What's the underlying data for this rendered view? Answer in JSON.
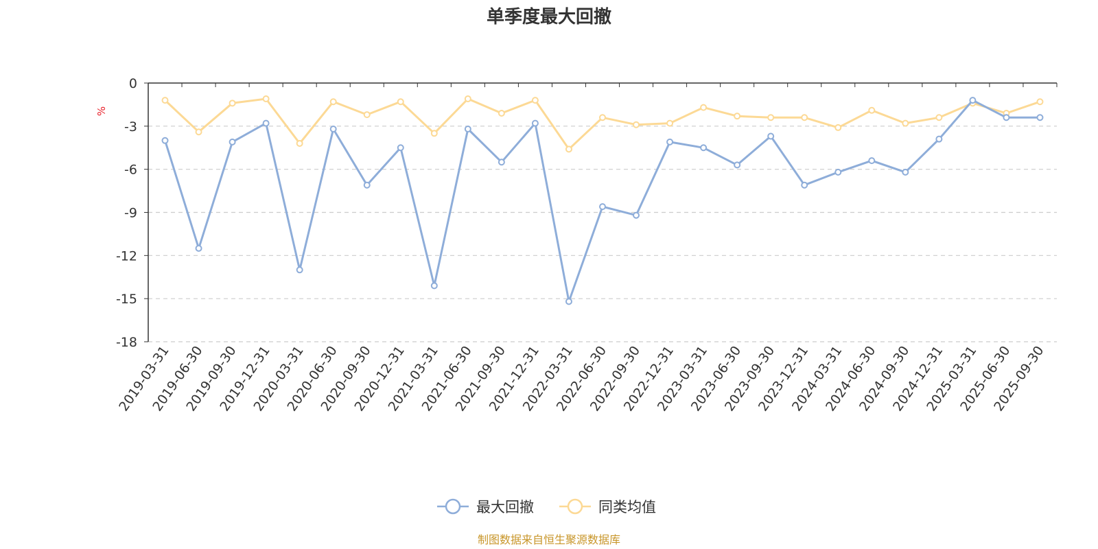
{
  "chart_data": {
    "type": "line",
    "title": "单季度最大回撤",
    "ylabel": "%",
    "xlabel": "",
    "ylim": [
      -18,
      0
    ],
    "yticks": [
      0,
      -3,
      -6,
      -9,
      -12,
      -15,
      -18
    ],
    "grid": true,
    "legend_position": "bottom-center",
    "categories": [
      "2019-03-31",
      "2019-06-30",
      "2019-09-30",
      "2019-12-31",
      "2020-03-31",
      "2020-06-30",
      "2020-09-30",
      "2020-12-31",
      "2021-03-31",
      "2021-06-30",
      "2021-09-30",
      "2021-12-31",
      "2022-03-31",
      "2022-06-30",
      "2022-09-30",
      "2022-12-31",
      "2023-03-31",
      "2023-06-30",
      "2023-09-30",
      "2023-12-31",
      "2024-03-31",
      "2024-06-30",
      "2024-09-30",
      "2024-12-31",
      "2025-03-31",
      "2025-06-30",
      "2025-09-30"
    ],
    "series": [
      {
        "name": "最大回撤",
        "color": "#8eadd9",
        "values": [
          -4.0,
          -11.5,
          -4.1,
          -2.8,
          -13.0,
          -3.2,
          -7.1,
          -4.5,
          -14.1,
          -3.2,
          -5.5,
          -2.8,
          -15.2,
          -8.6,
          -9.2,
          -4.1,
          -4.5,
          -5.7,
          -3.7,
          -7.1,
          -6.2,
          -5.4,
          -6.2,
          -3.9,
          -1.2,
          -2.4,
          -2.4
        ]
      },
      {
        "name": "同类均值",
        "color": "#fcd995",
        "values": [
          -1.2,
          -3.4,
          -1.4,
          -1.1,
          -4.2,
          -1.3,
          -2.2,
          -1.3,
          -3.5,
          -1.1,
          -2.1,
          -1.2,
          -4.6,
          -2.4,
          -2.9,
          -2.8,
          -1.7,
          -2.3,
          -2.4,
          -2.4,
          -3.1,
          -1.9,
          -2.8,
          -2.4,
          -1.4,
          -2.1,
          -1.3
        ]
      }
    ],
    "source_note": "制图数据来自恒生聚源数据库"
  }
}
